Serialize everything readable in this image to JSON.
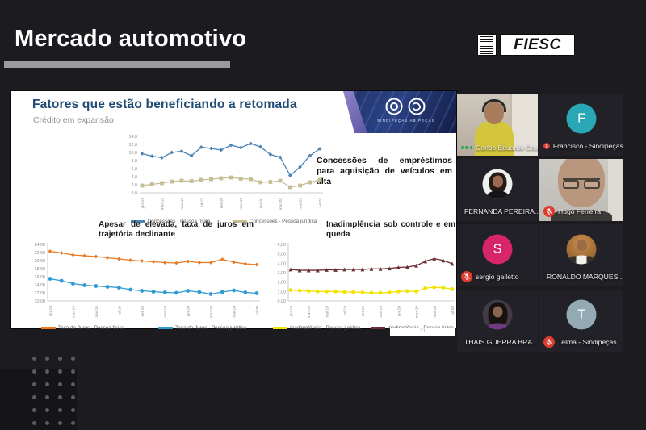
{
  "header": {
    "title": "Mercado automotivo",
    "logo_text": "FIESC"
  },
  "slide": {
    "title": "Fatores que estão beneficiando a retomada",
    "subtitle": "Crédito em expansão",
    "note": "Concessões de empréstimos para aquisição de veículos em alta",
    "page_number": "21",
    "logo_caption": "SINDIPEÇAS ABIPEÇAS"
  },
  "chart_data": [
    {
      "id": "concessoes",
      "type": "line",
      "title": "",
      "categories": [
        "jan-19",
        "fev-19",
        "mar-19",
        "abr-19",
        "mai-19",
        "jun-19",
        "jul-19",
        "ago-19",
        "set-19",
        "out-19",
        "nov-19",
        "dez-19",
        "jan-20",
        "fev-20",
        "mar-20",
        "abr-20",
        "mai-20",
        "jun-20",
        "jul-20"
      ],
      "xticks_shown": [
        "jan-19",
        "mar-19",
        "mai-19",
        "jul-19",
        "set-19",
        "nov-19",
        "jan-20",
        "mar-20",
        "mai-20",
        "jul-20"
      ],
      "ylim": [
        0,
        14
      ],
      "yticks": [
        [
          14,
          "14,0"
        ],
        [
          12,
          "12,0"
        ],
        [
          10,
          "10,0"
        ],
        [
          8,
          "8,0"
        ],
        [
          6,
          "6,0"
        ],
        [
          4,
          "4,0"
        ],
        [
          2,
          "2,0"
        ],
        [
          0,
          "0,0"
        ]
      ],
      "grid": false,
      "legend_position": "bottom",
      "series": [
        {
          "name": "Concessões - Pessoa física",
          "color": "#4a82b4",
          "marker": "diamond",
          "values": [
            9.7,
            9.1,
            8.7,
            10.0,
            10.3,
            9.2,
            11.3,
            11.0,
            10.6,
            11.8,
            11.2,
            12.2,
            11.4,
            9.5,
            8.8,
            4.3,
            6.4,
            9.2,
            10.9
          ]
        },
        {
          "name": "Concessões - Pessoa jurídica",
          "color": "#c6bd94",
          "marker": "square",
          "values": [
            1.8,
            2.1,
            2.4,
            2.8,
            3.0,
            2.9,
            3.2,
            3.4,
            3.6,
            3.8,
            3.5,
            3.4,
            2.6,
            2.7,
            3.0,
            1.4,
            1.8,
            2.6,
            3.2
          ]
        }
      ]
    },
    {
      "id": "juros",
      "type": "line",
      "title": "Apesar de elevada, taxa de juros em trajetória declinante",
      "categories": [
        "jan-19",
        "fev-19",
        "mar-19",
        "abr-19",
        "mai-19",
        "jun-19",
        "jul-19",
        "ago-19",
        "set-19",
        "out-19",
        "nov-19",
        "dez-19",
        "jan-20",
        "fev-20",
        "mar-20",
        "abr-20",
        "mai-20",
        "jun-20",
        "jul-20"
      ],
      "xticks_shown": [
        "jan-19",
        "mar-19",
        "mai-19",
        "jul-19",
        "set-19",
        "nov-19",
        "jan-20",
        "mar-20",
        "mai-20",
        "jul-20"
      ],
      "ylim": [
        10,
        24
      ],
      "yticks": [
        [
          24,
          "24,00"
        ],
        [
          22,
          "22,00"
        ],
        [
          20,
          "20,00"
        ],
        [
          18,
          "18,00"
        ],
        [
          16,
          "16,00"
        ],
        [
          14,
          "14,00"
        ],
        [
          12,
          "12,00"
        ],
        [
          10,
          "10,00"
        ]
      ],
      "grid": false,
      "legend_position": "bottom",
      "series": [
        {
          "name": "Taxa de Juros - Pessoa física",
          "color": "#e87a24",
          "marker": "diamond",
          "values": [
            22.3,
            21.9,
            21.4,
            21.2,
            21.0,
            20.7,
            20.4,
            20.1,
            19.9,
            19.7,
            19.5,
            19.4,
            19.8,
            19.5,
            19.5,
            20.3,
            19.6,
            19.2,
            19.0
          ]
        },
        {
          "name": "Taxa de Juros - Pessoa jurídica",
          "color": "#2e9ad2",
          "marker": "circle",
          "values": [
            15.5,
            15.0,
            14.3,
            13.9,
            13.7,
            13.5,
            13.3,
            12.8,
            12.5,
            12.3,
            12.1,
            12.0,
            12.5,
            12.2,
            11.7,
            12.2,
            12.6,
            12.1,
            11.9
          ]
        }
      ]
    },
    {
      "id": "inadimplencia",
      "type": "line",
      "title": "Inadimplência sob controle e em queda",
      "categories": [
        "jan-19",
        "fev-19",
        "mar-19",
        "abr-19",
        "mai-19",
        "jun-19",
        "jul-19",
        "ago-19",
        "set-19",
        "out-19",
        "nov-19",
        "dez-19",
        "jan-20",
        "fev-20",
        "mar-20",
        "abr-20",
        "mai-20",
        "jun-20",
        "jul-20"
      ],
      "xticks_shown": [
        "jan-19",
        "mar-19",
        "mai-19",
        "jul-19",
        "set-19",
        "nov-19",
        "jan-20",
        "mar-20",
        "mai-20",
        "jul-20"
      ],
      "ylim": [
        0,
        6
      ],
      "yticks": [
        [
          6,
          "6,00"
        ],
        [
          5,
          "5,00"
        ],
        [
          4,
          "4,00"
        ],
        [
          3,
          "3,00"
        ],
        [
          2,
          "2,00"
        ],
        [
          1,
          "1,00"
        ],
        [
          0,
          "0,00"
        ]
      ],
      "grid": false,
      "legend_position": "bottom",
      "series": [
        {
          "name": "Inadimplência - Pessoa jurídica",
          "color": "#f0e400",
          "marker": "circle",
          "values": [
            1.15,
            1.1,
            1.05,
            1.0,
            1.0,
            1.0,
            0.95,
            0.95,
            0.9,
            0.85,
            0.85,
            0.9,
            1.0,
            1.05,
            1.0,
            1.35,
            1.45,
            1.4,
            1.25
          ]
        },
        {
          "name": "Inadimplência - Pessoa física",
          "color": "#6a2e34",
          "marker": "triangle",
          "values": [
            3.35,
            3.25,
            3.25,
            3.25,
            3.3,
            3.3,
            3.35,
            3.35,
            3.35,
            3.4,
            3.4,
            3.45,
            3.55,
            3.6,
            3.75,
            4.2,
            4.5,
            4.3,
            3.95
          ]
        }
      ]
    }
  ],
  "participants": [
    {
      "name": "Carlos Eduardo Cava...",
      "kind": "video",
      "variant": "carlos",
      "muted": false,
      "speaking": true
    },
    {
      "name": "Francisco - Sindipeças",
      "kind": "letter",
      "letter": "F",
      "color": "#29a7b5",
      "muted": true
    },
    {
      "name": "FERNANDA PEREIRA...",
      "kind": "photo",
      "variant": "fernanda",
      "muted": true
    },
    {
      "name": "Hugo Ferreira",
      "kind": "video",
      "variant": "hugo",
      "muted": true
    },
    {
      "name": "sergio galletto",
      "kind": "letter",
      "letter": "S",
      "color": "#d62568",
      "muted": true
    },
    {
      "name": "RONALDO MARQUES...",
      "kind": "photo",
      "variant": "ronaldo",
      "muted": true
    },
    {
      "name": "THAIS GUERRA BRA...",
      "kind": "photo",
      "variant": "thais",
      "muted": true
    },
    {
      "name": "Telma - Sindipeças",
      "kind": "letter",
      "letter": "T",
      "color": "#93a9b4",
      "muted": true
    }
  ],
  "colors": {
    "background": "#1c1c20",
    "header_bar": "#9b9aa0",
    "slide_title": "#1e4a73",
    "muted_mic": "#dd3c2e",
    "speaking_indicator": "#34a853"
  }
}
